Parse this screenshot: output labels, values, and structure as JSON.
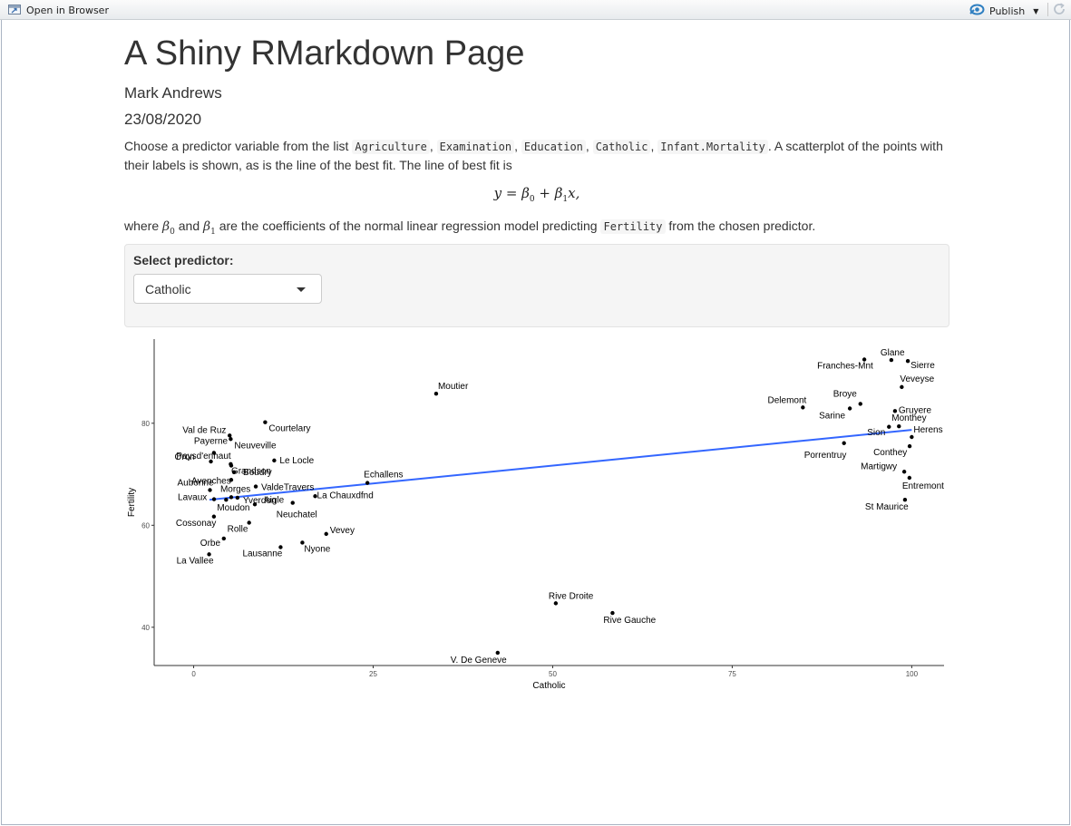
{
  "toolbar": {
    "open_in_browser": "Open in Browser",
    "publish": "Publish",
    "icons": [
      "browser-window-icon",
      "publish-icon",
      "caret-down-icon",
      "refresh-icon"
    ]
  },
  "doc": {
    "title": "A Shiny RMarkdown Page",
    "author": "Mark Andrews",
    "date": "23/08/2020",
    "p1": {
      "prefix": "Choose a predictor variable from the list ",
      "vars": [
        "Agriculture",
        "Examination",
        "Education",
        "Catholic",
        "Infant.Mortality"
      ],
      "suffix": ". A scatterplot of the points with their labels is shown, as is the line of the best fit. The line of best fit is"
    },
    "equation": "y = β0 + β1x,",
    "p2": {
      "prefix": "where ",
      "beta0": "β0",
      "and": " and ",
      "beta1": "β1",
      "middle": " are the coefficients of the normal linear regression model predicting ",
      "response": "Fertility",
      "suffix": " from the chosen predictor."
    }
  },
  "controls": {
    "predictor_label": "Select predictor:",
    "selected": "Catholic"
  },
  "colors": {
    "fit_line": "#3366FF",
    "points": "#000000"
  },
  "chart_data": {
    "type": "scatter",
    "xlabel": "Catholic",
    "ylabel": "Fertility",
    "xlim": [
      -5.5,
      104.5
    ],
    "ylim": [
      32.5,
      96.5
    ],
    "xticks": [
      0,
      25,
      50,
      75,
      100
    ],
    "yticks": [
      40,
      60,
      80
    ],
    "grid": false,
    "fit_line": {
      "x": [
        2.2,
        100
      ],
      "y": [
        65.0,
        78.7
      ]
    },
    "points": [
      {
        "label": "Courtelary",
        "x": 9.96,
        "y": 80.2
      },
      {
        "label": "Delemont",
        "x": 84.84,
        "y": 83.1
      },
      {
        "label": "Franches-Mnt",
        "x": 93.4,
        "y": 92.5
      },
      {
        "label": "Moutier",
        "x": 33.77,
        "y": 85.8
      },
      {
        "label": "Neuveville",
        "x": 5.16,
        "y": 76.9
      },
      {
        "label": "Porrentruy",
        "x": 90.57,
        "y": 76.1
      },
      {
        "label": "Broye",
        "x": 92.85,
        "y": 83.8
      },
      {
        "label": "Glane",
        "x": 97.16,
        "y": 92.4
      },
      {
        "label": "Gruyere",
        "x": 97.67,
        "y": 82.4
      },
      {
        "label": "Sarine",
        "x": 91.38,
        "y": 82.9
      },
      {
        "label": "Veveyse",
        "x": 98.61,
        "y": 87.1
      },
      {
        "label": "Aigle",
        "x": 8.52,
        "y": 64.1
      },
      {
        "label": "Aubonne",
        "x": 2.27,
        "y": 66.9
      },
      {
        "label": "Avenches",
        "x": 5.23,
        "y": 68.9
      },
      {
        "label": "Cossonay",
        "x": 2.82,
        "y": 61.7
      },
      {
        "label": "Echallens",
        "x": 24.2,
        "y": 68.3
      },
      {
        "label": "Grandson",
        "x": 5.23,
        "y": 71.7
      },
      {
        "label": "Lausanne",
        "x": 12.11,
        "y": 55.7
      },
      {
        "label": "La Vallee",
        "x": 2.15,
        "y": 54.3
      },
      {
        "label": "Lavaux",
        "x": 2.84,
        "y": 65.1
      },
      {
        "label": "Morges",
        "x": 5.23,
        "y": 65.5
      },
      {
        "label": "Moudon",
        "x": 4.52,
        "y": 65.0
      },
      {
        "label": "Nyone",
        "x": 15.14,
        "y": 56.6
      },
      {
        "label": "Orbe",
        "x": 4.2,
        "y": 57.4
      },
      {
        "label": "Oron",
        "x": 2.4,
        "y": 72.5
      },
      {
        "label": "Payerne",
        "x": 2.82,
        "y": 74.2
      },
      {
        "label": "Paysd'enhaut",
        "x": 5.16,
        "y": 72.0
      },
      {
        "label": "Rolle",
        "x": 7.72,
        "y": 60.5
      },
      {
        "label": "Vevey",
        "x": 18.46,
        "y": 58.3
      },
      {
        "label": "Yverdon",
        "x": 6.1,
        "y": 65.4
      },
      {
        "label": "Conthey",
        "x": 99.71,
        "y": 75.5
      },
      {
        "label": "Entremont",
        "x": 99.68,
        "y": 69.3
      },
      {
        "label": "Herens",
        "x": 100.0,
        "y": 77.3
      },
      {
        "label": "Martigwy",
        "x": 98.96,
        "y": 70.5
      },
      {
        "label": "Monthey",
        "x": 98.22,
        "y": 79.4
      },
      {
        "label": "St Maurice",
        "x": 99.06,
        "y": 65.0
      },
      {
        "label": "Sierre",
        "x": 99.46,
        "y": 92.2
      },
      {
        "label": "Sion",
        "x": 96.83,
        "y": 79.3
      },
      {
        "label": "Boudry",
        "x": 5.62,
        "y": 70.4
      },
      {
        "label": "La Chauxdfnd",
        "x": 16.92,
        "y": 65.7
      },
      {
        "label": "Le Locle",
        "x": 11.22,
        "y": 72.7
      },
      {
        "label": "Neuchatel",
        "x": 13.79,
        "y": 64.4
      },
      {
        "label": "Val de Ruz",
        "x": 5.01,
        "y": 77.6
      },
      {
        "label": "ValdeTravers",
        "x": 8.65,
        "y": 67.6
      },
      {
        "label": "V. De Geneve",
        "x": 42.34,
        "y": 35.0
      },
      {
        "label": "Rive Droite",
        "x": 50.43,
        "y": 44.7
      },
      {
        "label": "Rive Gauche",
        "x": 58.33,
        "y": 42.8
      }
    ]
  }
}
